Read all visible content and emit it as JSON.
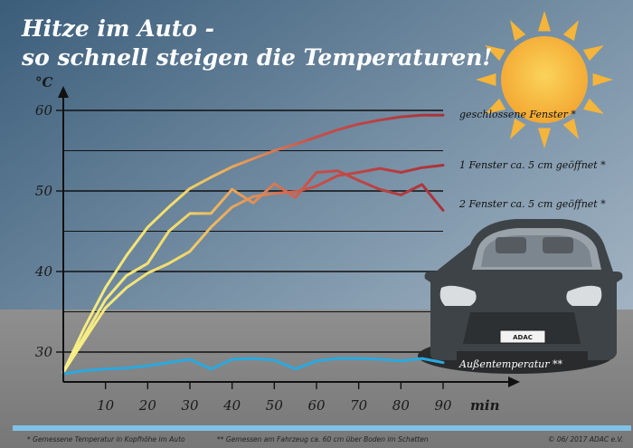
{
  "colors": {
    "sky_top": "#3d5f7c",
    "sky_bottom": "#a9b9c8",
    "ground": "#8a8a8a",
    "warm_start": "#f5ea7a",
    "closed": "#b4343a",
    "one_window": "#a93a3f",
    "two_windows": "#9b3035",
    "outside": "#29a9e0",
    "sun": "#f8c13e",
    "car_body": "#3f4448"
  },
  "title_line1": "Hitze im Auto -",
  "title_line2": "so schnell steigen die Temperaturen!",
  "unit_y": "°C",
  "unit_x": "min",
  "license_plate": "ADAC",
  "footnote1": "* Gemessene Temperatur  in Kopfhöhe  im Auto",
  "footnote2": "** Gemessen am Fahrzeug ca. 60 cm über Boden im Schatten",
  "copyright": "© 06/ 2017 ADAC e.V.",
  "chart_data": {
    "type": "line",
    "title": "Hitze im Auto - so schnell steigen die Temperaturen!",
    "xlabel": "min",
    "ylabel": "°C",
    "xlim": [
      0,
      100
    ],
    "ylim": [
      26,
      62
    ],
    "x_ticks": [
      10,
      20,
      30,
      40,
      50,
      60,
      70,
      80,
      90
    ],
    "y_ticks": [
      30,
      40,
      50,
      60
    ],
    "series": [
      {
        "name": "geschlossene Fenster *",
        "x": [
          0,
          5,
          10,
          15,
          20,
          25,
          30,
          35,
          40,
          45,
          50,
          55,
          60,
          65,
          70,
          75,
          80,
          85,
          90
        ],
        "y": [
          27.5,
          33,
          38,
          42,
          45.5,
          48,
          50.3,
          51.7,
          53,
          54,
          55,
          55.8,
          56.7,
          57.6,
          58.3,
          58.8,
          59.2,
          59.4,
          59.4
        ]
      },
      {
        "name": "1 Fenster ca. 5 cm geöffnet *",
        "x": [
          0,
          5,
          10,
          15,
          20,
          25,
          30,
          35,
          40,
          45,
          50,
          55,
          60,
          65,
          70,
          75,
          80,
          85,
          90
        ],
        "y": [
          27.5,
          32,
          36.5,
          39.5,
          41,
          45,
          47.2,
          47.2,
          50.2,
          48.5,
          50.9,
          49.2,
          52.3,
          52.5,
          51.3,
          50.2,
          49.5,
          50.8,
          47.6
        ]
      },
      {
        "name": "2 Fenster ca. 5 cm geöffnet *",
        "x": [
          0,
          5,
          10,
          15,
          20,
          25,
          30,
          35,
          40,
          45,
          50,
          55,
          60,
          65,
          70,
          75,
          80,
          85,
          90
        ],
        "y": [
          27.5,
          31.5,
          35.5,
          38,
          39.8,
          41,
          42.5,
          45.5,
          48,
          49.3,
          49.7,
          49.9,
          50.6,
          51.9,
          52.3,
          52.8,
          52.3,
          52.9,
          53.2
        ]
      },
      {
        "name": "Außentemperatur **",
        "x": [
          0,
          5,
          10,
          15,
          20,
          25,
          30,
          35,
          40,
          45,
          50,
          55,
          60,
          65,
          70,
          75,
          80,
          85,
          90
        ],
        "y": [
          27.3,
          27.7,
          27.9,
          28.0,
          28.3,
          28.7,
          29.1,
          27.9,
          29.1,
          29.2,
          29.0,
          27.9,
          28.9,
          29.2,
          29.2,
          29.1,
          28.9,
          29.2,
          28.7
        ]
      }
    ]
  }
}
